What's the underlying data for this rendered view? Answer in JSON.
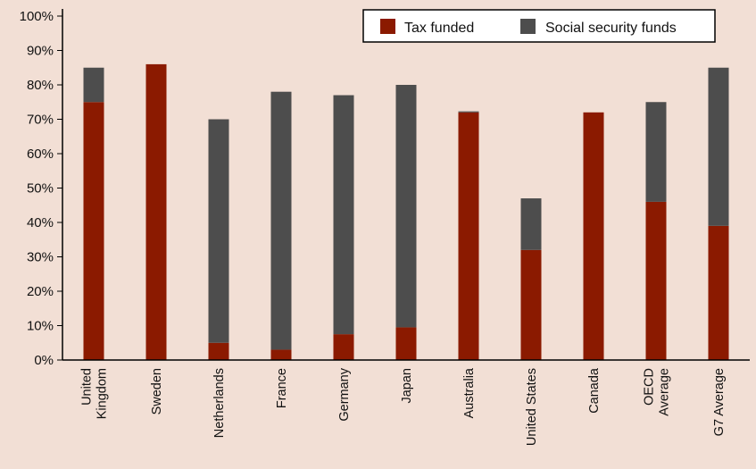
{
  "chart_data": {
    "type": "bar",
    "stacked": true,
    "categories": [
      "United Kingdom",
      "Sweden",
      "Netherlands",
      "France",
      "Germany",
      "Japan",
      "Australia",
      "United States",
      "Canada",
      "OECD Average",
      "G7 Average"
    ],
    "category_lines": [
      [
        "United",
        "Kingdom"
      ],
      [
        "Sweden"
      ],
      [
        "Netherlands"
      ],
      [
        "France"
      ],
      [
        "Germany"
      ],
      [
        "Japan"
      ],
      [
        "Australia"
      ],
      [
        "United States"
      ],
      [
        "Canada"
      ],
      [
        "OECD",
        "Average"
      ],
      [
        "G7 Average"
      ]
    ],
    "series": [
      {
        "name": "Tax funded",
        "color": "#8b1a00",
        "values": [
          75,
          86,
          5,
          3,
          7.5,
          9.5,
          72,
          32,
          72,
          46,
          39
        ]
      },
      {
        "name": "Social security funds",
        "color": "#4d4d4d",
        "values": [
          10,
          0,
          65,
          75,
          69.5,
          70.5,
          0.3,
          15,
          0,
          29,
          46
        ]
      }
    ],
    "ylim": [
      0,
      100
    ],
    "y_ticks": [
      "0%",
      "10%",
      "20%",
      "30%",
      "40%",
      "50%",
      "60%",
      "70%",
      "80%",
      "90%",
      "100%"
    ],
    "legend": {
      "placement": "top-right",
      "entries": [
        "Tax funded",
        "Social security funds"
      ]
    },
    "grid": false
  }
}
